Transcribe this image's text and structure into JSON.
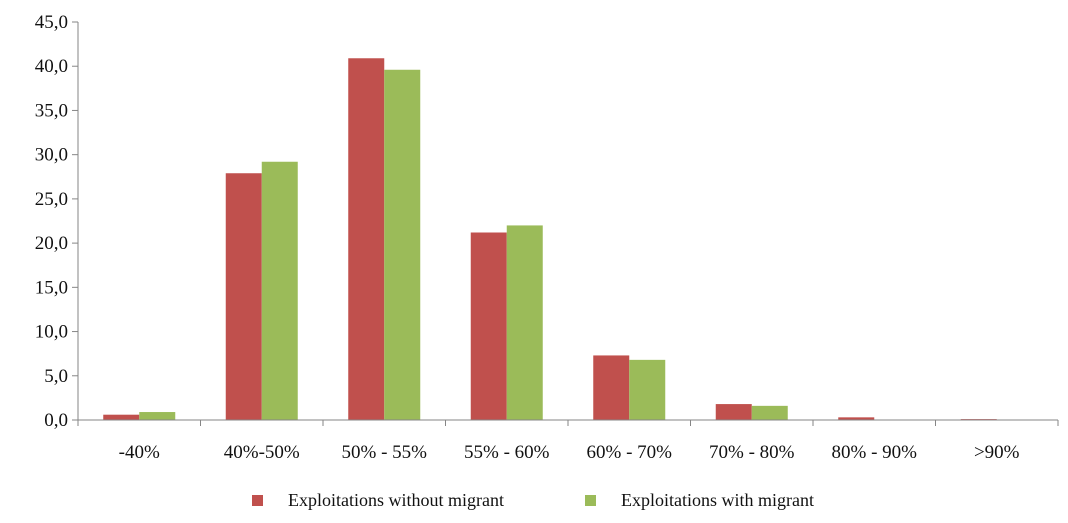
{
  "chart_data": {
    "type": "bar",
    "categories": [
      "-40%",
      "40%-50%",
      "50% - 55%",
      "55% - 60%",
      "60% - 70%",
      "70% - 80%",
      "80% - 90%",
      ">90%"
    ],
    "series": [
      {
        "name": "Exploitations  without migrant",
        "color": "#c0504d",
        "values": [
          0.6,
          27.9,
          40.9,
          21.2,
          7.3,
          1.8,
          0.3,
          0.1
        ]
      },
      {
        "name": "Exploitations  with migrant",
        "color": "#9bbb59",
        "values": [
          0.9,
          29.2,
          39.6,
          22.0,
          6.8,
          1.6,
          0.05,
          0.0
        ]
      }
    ],
    "y_ticks": [
      "0,0",
      "5,0",
      "10,0",
      "15,0",
      "20,0",
      "25,0",
      "30,0",
      "35,0",
      "40,0",
      "45,0"
    ],
    "ylim": [
      0,
      45
    ],
    "legend_position": "bottom",
    "grid": false
  }
}
